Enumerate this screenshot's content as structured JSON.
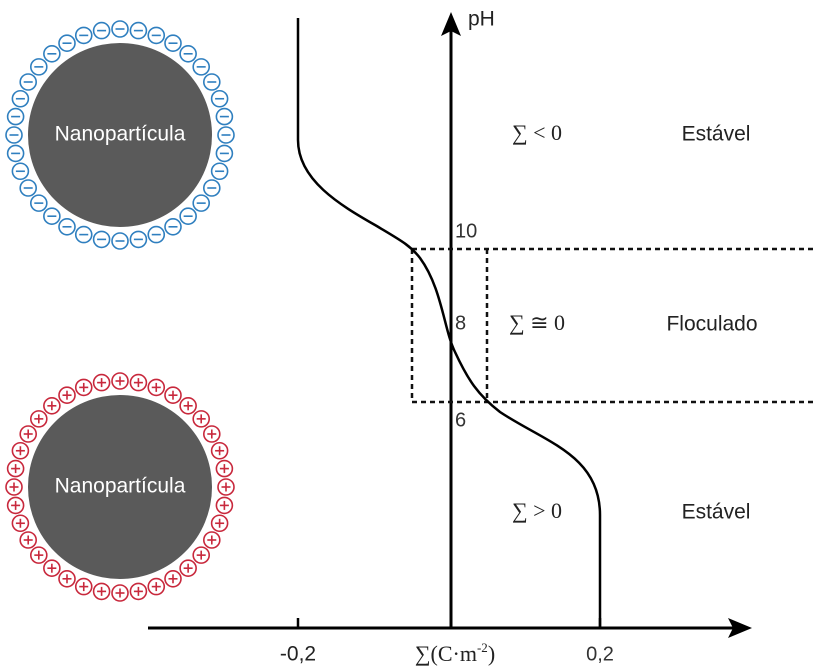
{
  "axes": {
    "y_label": "pH",
    "y_ticks": [
      "10",
      "8",
      "6"
    ],
    "x_ticks": [
      "-0,2",
      "0,2"
    ],
    "x_label": {
      "main": "∑(C·m",
      "superscript": "-2",
      "close": ")"
    }
  },
  "regions": [
    {
      "condition": "∑ < 0",
      "state": "Estável"
    },
    {
      "condition": "∑ ≅ 0",
      "state": "Floculado"
    },
    {
      "condition": "∑ > 0",
      "state": "Estável"
    }
  ],
  "particles": [
    {
      "label": "Nanopartícula"
    },
    {
      "label": "Nanopartícula"
    }
  ]
}
